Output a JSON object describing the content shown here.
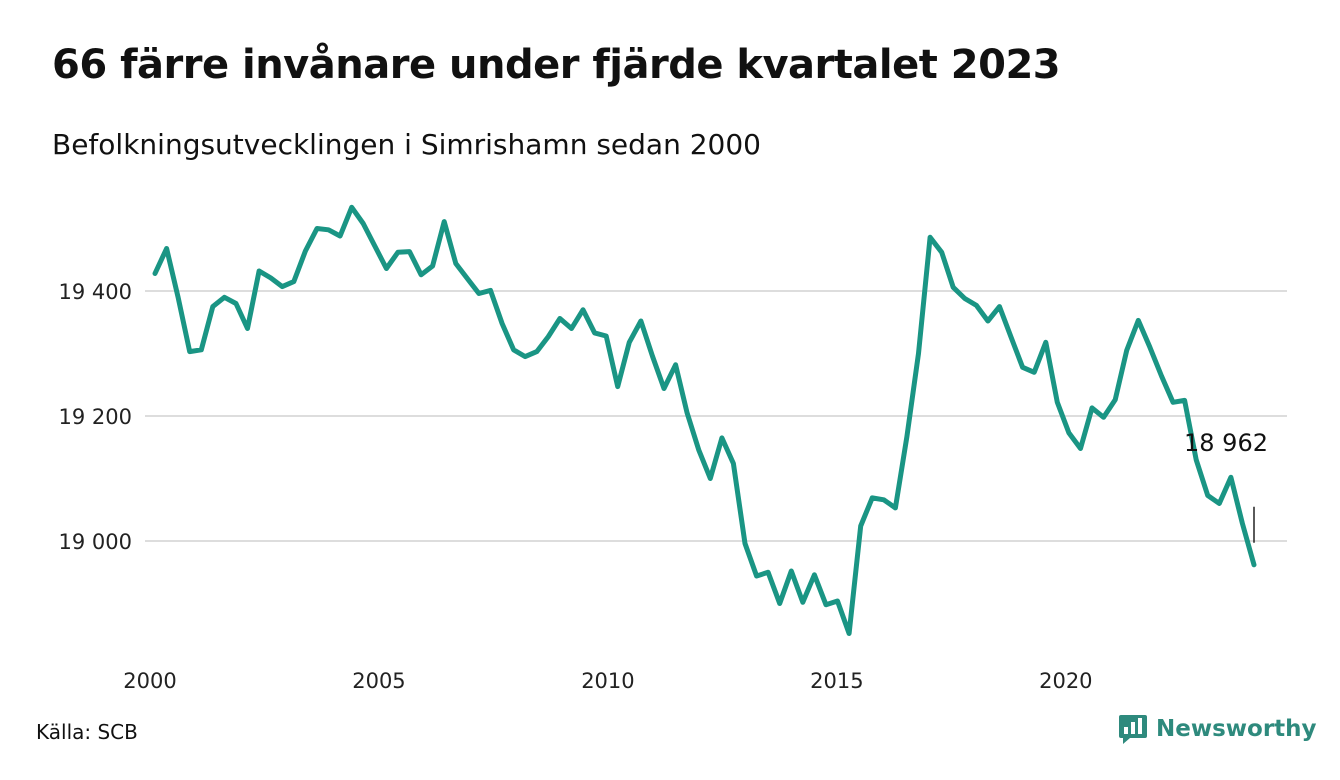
{
  "header": {
    "title": "66 färre invånare under fjärde kvartalet 2023",
    "subtitle": "Befolkningsutvecklingen i Simrishamn sedan 2000"
  },
  "footer": {
    "source": "Källa: SCB",
    "brand": "Newsworthy"
  },
  "colors": {
    "line": "#1a9584",
    "grid": "#dddddd",
    "brand": "#2e8a7d"
  },
  "chart_data": {
    "type": "line",
    "title": "66 färre invånare under fjärde kvartalet 2023",
    "subtitle": "Befolkningsutvecklingen i Simrishamn sedan 2000",
    "x_ticks": [
      2000,
      2005,
      2010,
      2015,
      2020
    ],
    "x_tick_labels": [
      "2000",
      "2005",
      "2010",
      "2015",
      "2020"
    ],
    "y_ticks": [
      19000,
      19200,
      19400
    ],
    "y_tick_labels": [
      "19 000",
      "19 200",
      "19 400"
    ],
    "xlim": [
      2000,
      2024
    ],
    "ylim": [
      18840,
      19540
    ],
    "grid": "horizontal",
    "last_value_label": "18 962",
    "series": [
      {
        "values": [
          19428,
          19468,
          19390,
          19303,
          19306,
          19375,
          19390,
          19380,
          19340,
          19432,
          19421,
          19407,
          19415,
          19464,
          19500,
          19498,
          19488,
          19534,
          19508,
          19472,
          19436,
          19462,
          19463,
          19426,
          19440,
          19511,
          19444,
          19420,
          19396,
          19401,
          19348,
          19306,
          19295,
          19303,
          19327,
          19356,
          19340,
          19370,
          19333,
          19328,
          19247,
          19318,
          19352,
          19296,
          19244,
          19282,
          19205,
          19146,
          19100,
          19165,
          19124,
          18996,
          18944,
          18950,
          18900,
          18952,
          18902,
          18946,
          18898,
          18904,
          18852,
          19024,
          19069,
          19066,
          19053,
          19167,
          19300,
          19486,
          19462,
          19406,
          19388,
          19377,
          19352,
          19375,
          19326,
          19278,
          19270,
          19318,
          19222,
          19173,
          19148,
          19213,
          19198,
          19226,
          19305,
          19353,
          19310,
          19264,
          19222,
          19225,
          19130,
          19073,
          19060,
          19102,
          19028,
          18962
        ]
      }
    ]
  }
}
